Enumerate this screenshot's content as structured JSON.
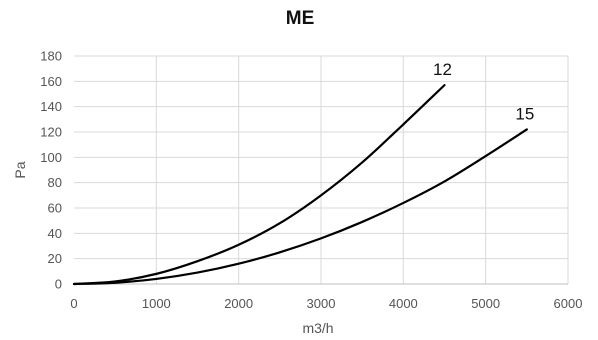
{
  "chart_data": {
    "type": "line",
    "title": "ME",
    "xlabel": "m3/h",
    "ylabel": "Pa",
    "xlim": [
      0,
      6000
    ],
    "ylim": [
      0,
      180
    ],
    "x_ticks": [
      "0",
      "1000",
      "2000",
      "3000",
      "4000",
      "5000",
      "6000"
    ],
    "y_ticks": [
      "0",
      "20",
      "40",
      "60",
      "80",
      "100",
      "120",
      "140",
      "160",
      "180"
    ],
    "grid": true,
    "legend": "none",
    "series": [
      {
        "name": "12",
        "color": "#000000",
        "x": [
          0,
          500,
          1000,
          1500,
          2000,
          2500,
          3000,
          3500,
          4000,
          4500
        ],
        "y": [
          0,
          2,
          8,
          18,
          31,
          48,
          70,
          96,
          126,
          157
        ]
      },
      {
        "name": "15",
        "color": "#000000",
        "x": [
          0,
          500,
          1000,
          1500,
          2000,
          2500,
          3000,
          3500,
          4000,
          4500,
          5000,
          5500
        ],
        "y": [
          0,
          1,
          4,
          9,
          16,
          25,
          36,
          49,
          64,
          81,
          101,
          122
        ]
      }
    ]
  }
}
